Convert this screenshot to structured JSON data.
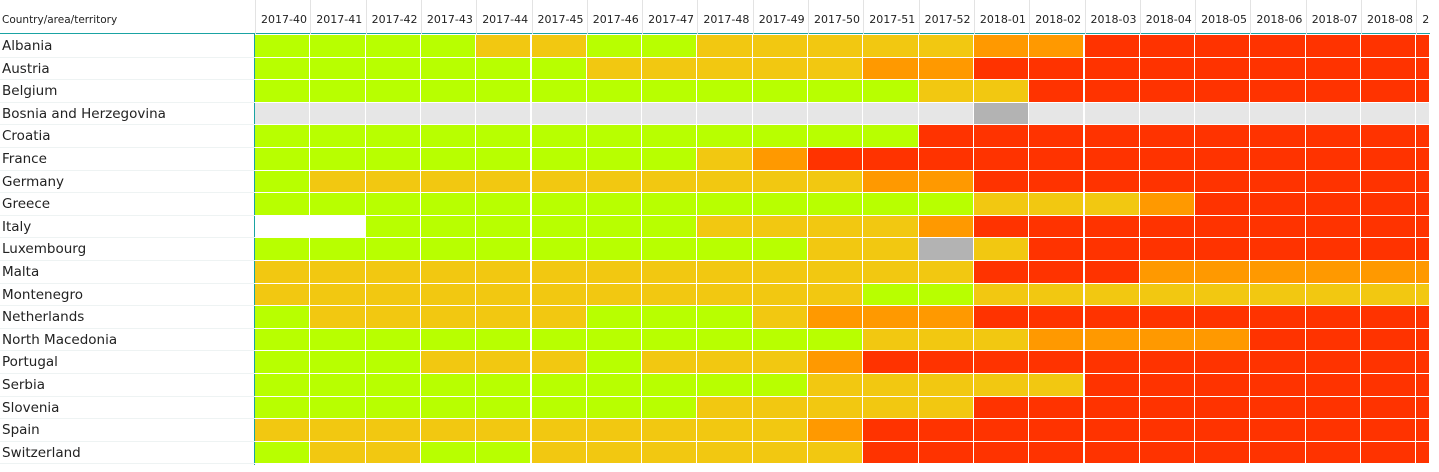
{
  "header": {
    "corner": "Country/area/territory",
    "columns": [
      "2017-40",
      "2017-41",
      "2017-42",
      "2017-43",
      "2017-44",
      "2017-45",
      "2017-46",
      "2017-47",
      "2017-48",
      "2017-49",
      "2017-50",
      "2017-51",
      "2017-52",
      "2018-01",
      "2018-02",
      "2018-03",
      "2018-04",
      "2018-05",
      "2018-06",
      "2018-07",
      "2018-08",
      "2"
    ]
  },
  "rows": [
    {
      "name": "Albania",
      "cells": [
        "#b8ff00",
        "#b8ff00",
        "#b8ff00",
        "#b8ff00",
        "#f2c811",
        "#f2c811",
        "#b8ff00",
        "#b8ff00",
        "#f2c811",
        "#f2c811",
        "#f2c811",
        "#f2c811",
        "#f2c811",
        "#ff9900",
        "#ff9900",
        "#ff3300",
        "#ff3300",
        "#ff3300",
        "#ff3300",
        "#ff3300",
        "#ff3300",
        "#ff3300"
      ]
    },
    {
      "name": "Austria",
      "cells": [
        "#b8ff00",
        "#b8ff00",
        "#b8ff00",
        "#b8ff00",
        "#b8ff00",
        "#b8ff00",
        "#f2c811",
        "#f2c811",
        "#f2c811",
        "#f2c811",
        "#f2c811",
        "#ff9900",
        "#ff9900",
        "#ff3300",
        "#ff3300",
        "#ff3300",
        "#ff3300",
        "#ff3300",
        "#ff3300",
        "#ff3300",
        "#ff3300",
        "#ff3300"
      ]
    },
    {
      "name": "Belgium",
      "cells": [
        "#b8ff00",
        "#b8ff00",
        "#b8ff00",
        "#b8ff00",
        "#b8ff00",
        "#b8ff00",
        "#b8ff00",
        "#b8ff00",
        "#b8ff00",
        "#b8ff00",
        "#b8ff00",
        "#b8ff00",
        "#f2c811",
        "#f2c811",
        "#ff3300",
        "#ff3300",
        "#ff3300",
        "#ff3300",
        "#ff3300",
        "#ff3300",
        "#ff3300",
        "#ff3300"
      ]
    },
    {
      "name": "Bosnia and Herzegovina",
      "cells": [
        "#e6e6e6",
        "#e6e6e6",
        "#e6e6e6",
        "#e6e6e6",
        "#e6e6e6",
        "#e6e6e6",
        "#e6e6e6",
        "#e6e6e6",
        "#e6e6e6",
        "#e6e6e6",
        "#e6e6e6",
        "#e6e6e6",
        "#e6e6e6",
        "#b3b3b3",
        "#e6e6e6",
        "#e6e6e6",
        "#e6e6e6",
        "#e6e6e6",
        "#e6e6e6",
        "#e6e6e6",
        "#e6e6e6",
        "#e6e6e6"
      ]
    },
    {
      "name": "Croatia",
      "cells": [
        "#b8ff00",
        "#b8ff00",
        "#b8ff00",
        "#b8ff00",
        "#b8ff00",
        "#b8ff00",
        "#b8ff00",
        "#b8ff00",
        "#b8ff00",
        "#b8ff00",
        "#b8ff00",
        "#b8ff00",
        "#ff3300",
        "#ff3300",
        "#ff3300",
        "#ff3300",
        "#ff3300",
        "#ff3300",
        "#ff3300",
        "#ff3300",
        "#ff3300",
        "#ff3300"
      ]
    },
    {
      "name": "France",
      "cells": [
        "#b8ff00",
        "#b8ff00",
        "#b8ff00",
        "#b8ff00",
        "#b8ff00",
        "#b8ff00",
        "#b8ff00",
        "#b8ff00",
        "#f2c811",
        "#ff9900",
        "#ff3300",
        "#ff3300",
        "#ff3300",
        "#ff3300",
        "#ff3300",
        "#ff3300",
        "#ff3300",
        "#ff3300",
        "#ff3300",
        "#ff3300",
        "#ff3300",
        "#ff3300"
      ]
    },
    {
      "name": "Germany",
      "cells": [
        "#b8ff00",
        "#f2c811",
        "#f2c811",
        "#f2c811",
        "#f2c811",
        "#f2c811",
        "#f2c811",
        "#f2c811",
        "#f2c811",
        "#f2c811",
        "#f2c811",
        "#ff9900",
        "#ff9900",
        "#ff3300",
        "#ff3300",
        "#ff3300",
        "#ff3300",
        "#ff3300",
        "#ff3300",
        "#ff3300",
        "#ff3300",
        "#ff3300"
      ]
    },
    {
      "name": "Greece",
      "cells": [
        "#b8ff00",
        "#b8ff00",
        "#b8ff00",
        "#b8ff00",
        "#b8ff00",
        "#b8ff00",
        "#b8ff00",
        "#b8ff00",
        "#b8ff00",
        "#b8ff00",
        "#b8ff00",
        "#b8ff00",
        "#b8ff00",
        "#f2c811",
        "#f2c811",
        "#f2c811",
        "#ff9900",
        "#ff3300",
        "#ff3300",
        "#ff3300",
        "#ff3300",
        "#ff3300"
      ]
    },
    {
      "name": "Italy",
      "cells": [
        "#ffffff",
        "#ffffff",
        "#b8ff00",
        "#b8ff00",
        "#b8ff00",
        "#b8ff00",
        "#b8ff00",
        "#b8ff00",
        "#f2c811",
        "#f2c811",
        "#f2c811",
        "#f2c811",
        "#ff9900",
        "#ff3300",
        "#ff3300",
        "#ff3300",
        "#ff3300",
        "#ff3300",
        "#ff3300",
        "#ff3300",
        "#ff3300",
        "#ff3300"
      ]
    },
    {
      "name": "Luxembourg",
      "cells": [
        "#b8ff00",
        "#b8ff00",
        "#b8ff00",
        "#b8ff00",
        "#b8ff00",
        "#b8ff00",
        "#b8ff00",
        "#b8ff00",
        "#b8ff00",
        "#b8ff00",
        "#f2c811",
        "#f2c811",
        "#b3b3b3",
        "#f2c811",
        "#ff3300",
        "#ff3300",
        "#ff3300",
        "#ff3300",
        "#ff3300",
        "#ff3300",
        "#ff3300",
        "#ff3300"
      ]
    },
    {
      "name": "Malta",
      "cells": [
        "#f2c811",
        "#f2c811",
        "#f2c811",
        "#f2c811",
        "#f2c811",
        "#f2c811",
        "#f2c811",
        "#f2c811",
        "#f2c811",
        "#f2c811",
        "#f2c811",
        "#f2c811",
        "#f2c811",
        "#ff3300",
        "#ff3300",
        "#ff3300",
        "#ff9900",
        "#ff9900",
        "#ff9900",
        "#ff9900",
        "#ff9900",
        "#ff9900"
      ]
    },
    {
      "name": "Montenegro",
      "cells": [
        "#f2c811",
        "#f2c811",
        "#f2c811",
        "#f2c811",
        "#f2c811",
        "#f2c811",
        "#f2c811",
        "#f2c811",
        "#f2c811",
        "#f2c811",
        "#f2c811",
        "#b8ff00",
        "#b8ff00",
        "#f2c811",
        "#f2c811",
        "#f2c811",
        "#f2c811",
        "#f2c811",
        "#f2c811",
        "#f2c811",
        "#f2c811",
        "#f2c811"
      ]
    },
    {
      "name": "Netherlands",
      "cells": [
        "#b8ff00",
        "#f2c811",
        "#f2c811",
        "#f2c811",
        "#f2c811",
        "#f2c811",
        "#b8ff00",
        "#b8ff00",
        "#b8ff00",
        "#f2c811",
        "#ff9900",
        "#ff9900",
        "#ff9900",
        "#ff3300",
        "#ff3300",
        "#ff3300",
        "#ff3300",
        "#ff3300",
        "#ff3300",
        "#ff3300",
        "#ff3300",
        "#ff3300"
      ]
    },
    {
      "name": "North Macedonia",
      "cells": [
        "#b8ff00",
        "#b8ff00",
        "#b8ff00",
        "#b8ff00",
        "#b8ff00",
        "#b8ff00",
        "#b8ff00",
        "#b8ff00",
        "#b8ff00",
        "#b8ff00",
        "#b8ff00",
        "#f2c811",
        "#f2c811",
        "#f2c811",
        "#ff9900",
        "#ff9900",
        "#ff9900",
        "#ff9900",
        "#ff3300",
        "#ff3300",
        "#ff3300",
        "#ff3300"
      ]
    },
    {
      "name": "Portugal",
      "cells": [
        "#b8ff00",
        "#b8ff00",
        "#b8ff00",
        "#f2c811",
        "#f2c811",
        "#f2c811",
        "#b8ff00",
        "#f2c811",
        "#f2c811",
        "#f2c811",
        "#ff9900",
        "#ff3300",
        "#ff3300",
        "#ff3300",
        "#ff3300",
        "#ff3300",
        "#ff3300",
        "#ff3300",
        "#ff3300",
        "#ff3300",
        "#ff3300",
        "#ff3300"
      ]
    },
    {
      "name": "Serbia",
      "cells": [
        "#b8ff00",
        "#b8ff00",
        "#b8ff00",
        "#b8ff00",
        "#b8ff00",
        "#b8ff00",
        "#b8ff00",
        "#b8ff00",
        "#b8ff00",
        "#b8ff00",
        "#f2c811",
        "#f2c811",
        "#f2c811",
        "#f2c811",
        "#f2c811",
        "#ff3300",
        "#ff3300",
        "#ff3300",
        "#ff3300",
        "#ff3300",
        "#ff3300",
        "#ff3300"
      ]
    },
    {
      "name": "Slovenia",
      "cells": [
        "#b8ff00",
        "#b8ff00",
        "#b8ff00",
        "#b8ff00",
        "#b8ff00",
        "#b8ff00",
        "#b8ff00",
        "#b8ff00",
        "#f2c811",
        "#f2c811",
        "#f2c811",
        "#f2c811",
        "#f2c811",
        "#ff3300",
        "#ff3300",
        "#ff3300",
        "#ff3300",
        "#ff3300",
        "#ff3300",
        "#ff3300",
        "#ff3300",
        "#ff3300"
      ]
    },
    {
      "name": "Spain",
      "cells": [
        "#f2c811",
        "#f2c811",
        "#f2c811",
        "#f2c811",
        "#f2c811",
        "#f2c811",
        "#f2c811",
        "#f2c811",
        "#f2c811",
        "#f2c811",
        "#ff9900",
        "#ff3300",
        "#ff3300",
        "#ff3300",
        "#ff3300",
        "#ff3300",
        "#ff3300",
        "#ff3300",
        "#ff3300",
        "#ff3300",
        "#ff3300",
        "#ff3300"
      ]
    },
    {
      "name": "Switzerland",
      "cells": [
        "#b8ff00",
        "#f2c811",
        "#f2c811",
        "#b8ff00",
        "#b8ff00",
        "#f2c811",
        "#f2c811",
        "#f2c811",
        "#f2c811",
        "#f2c811",
        "#f2c811",
        "#ff3300",
        "#ff3300",
        "#ff3300",
        "#ff3300",
        "#ff3300",
        "#ff3300",
        "#ff3300",
        "#ff3300",
        "#ff3300",
        "#ff3300",
        "#ff3300"
      ]
    }
  ]
}
